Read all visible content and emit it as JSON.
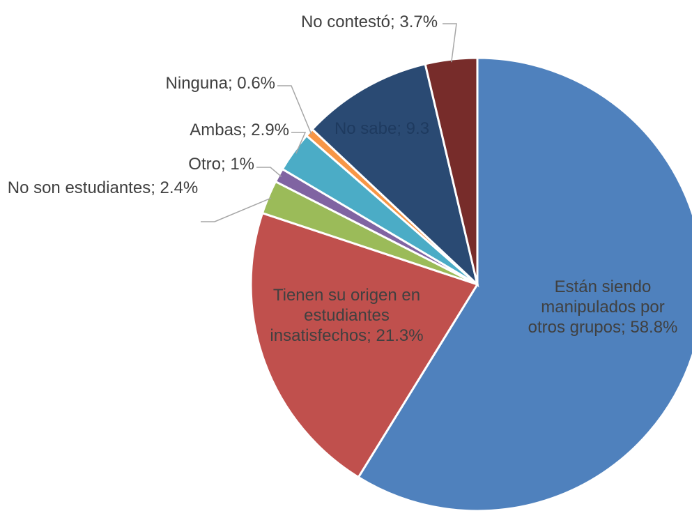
{
  "chart_data": {
    "type": "pie",
    "categories": [
      "Están siendo manipulados por otros grupos;",
      "Tienen su origen en estudiantes insatisfechos;",
      "No son estudiantes;",
      "Otro;",
      "Ambas;",
      "Ninguna;",
      "No sabe;",
      "No contestó;"
    ],
    "values": [
      58.8,
      21.3,
      2.4,
      1,
      2.9,
      0.6,
      9.3,
      3.7
    ],
    "value_labels": [
      "58.8%",
      "21.3%",
      "2.4%",
      "1%",
      "2.9%",
      "0.6%",
      "9.3",
      "3.7%"
    ],
    "colors": [
      "#4f81bd",
      "#c0504d",
      "#9bbb59",
      "#8064a2",
      "#4bacc6",
      "#f79646",
      "#2a4a73",
      "#772c2a"
    ]
  }
}
